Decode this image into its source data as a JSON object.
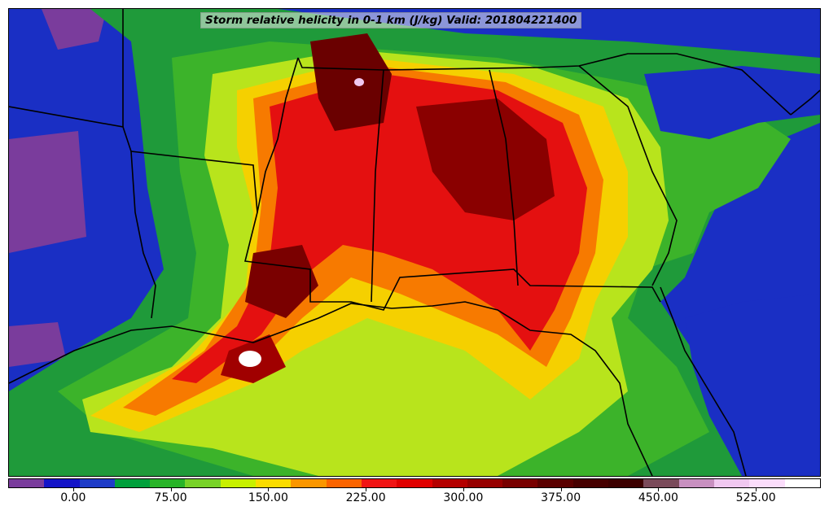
{
  "map": {
    "title": "Storm relative helicity in 0-1 km (J/kg) Valid: 201804221400",
    "variable": "Storm relative helicity",
    "layer": "0-1 km",
    "units": "J/kg",
    "valid_time": "201804221400",
    "region_shown": "Southeastern United States and northern Gulf of Mexico"
  },
  "colorbar": {
    "colors": [
      "#7a3c9c",
      "#1414c8",
      "#1e3cc8",
      "#00a03c",
      "#28b428",
      "#78d228",
      "#c8f000",
      "#fadc00",
      "#fa9600",
      "#fa6400",
      "#f01414",
      "#e00000",
      "#b40000",
      "#960000",
      "#780000",
      "#5a0000",
      "#460000",
      "#3c0000",
      "#7a4a5a",
      "#c890c0",
      "#f0c8f0",
      "#fadcfa",
      "#ffffff"
    ],
    "tick_labels": [
      "0.00",
      "75.00",
      "150.00",
      "225.00",
      "300.00",
      "375.00",
      "450.00",
      "525.00"
    ],
    "tick_values": [
      0,
      75,
      150,
      225,
      300,
      375,
      450,
      525
    ],
    "range": [
      -50,
      575
    ]
  }
}
